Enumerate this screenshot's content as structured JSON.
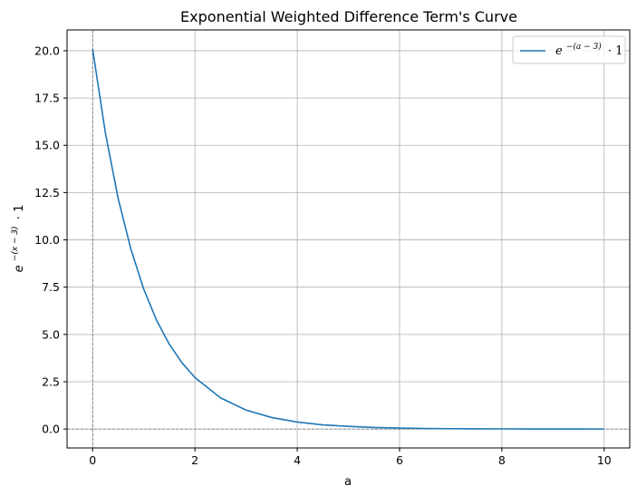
{
  "chart_data": {
    "type": "line",
    "title": "Exponential Weighted Difference Term's Curve",
    "xlabel": "a",
    "ylabel_base": "e",
    "ylabel_exponent": "−(x − 3)",
    "ylabel_suffix": "· 1",
    "xlim": [
      -0.5,
      10.5
    ],
    "ylim": [
      -1.0,
      21.1
    ],
    "x_ticks": [
      0,
      2,
      4,
      6,
      8,
      10
    ],
    "x_tick_labels": [
      "0",
      "2",
      "4",
      "6",
      "8",
      "10"
    ],
    "y_ticks": [
      0,
      2.5,
      5,
      7.5,
      10,
      12.5,
      15,
      17.5,
      20
    ],
    "y_tick_labels": [
      "0.0",
      "2.5",
      "5.0",
      "7.5",
      "10.0",
      "12.5",
      "15.0",
      "17.5",
      "20.0"
    ],
    "grid": true,
    "reference_lines": {
      "x": 0,
      "y": 0,
      "color": "#555555",
      "style": "dashed"
    },
    "legend": {
      "placement": "top-right",
      "base": "e",
      "exponent": "−(a − 3)",
      "suffix": "· 1"
    },
    "series": [
      {
        "color": "#1f77b4",
        "function": "exp(-(a-3))",
        "x": [
          0,
          0.25,
          0.5,
          0.75,
          1,
          1.25,
          1.5,
          1.75,
          2,
          2.5,
          3,
          3.5,
          4,
          4.5,
          5,
          5.5,
          6,
          6.5,
          7,
          7.5,
          8,
          8.5,
          9,
          9.5,
          10
        ],
        "y": [
          20.09,
          15.64,
          12.18,
          9.49,
          7.39,
          5.75,
          4.48,
          3.49,
          2.72,
          1.65,
          1.0,
          0.61,
          0.37,
          0.22,
          0.14,
          0.08,
          0.05,
          0.03,
          0.018,
          0.011,
          0.007,
          0.004,
          0.002,
          0.0015,
          0.0009
        ]
      }
    ]
  }
}
